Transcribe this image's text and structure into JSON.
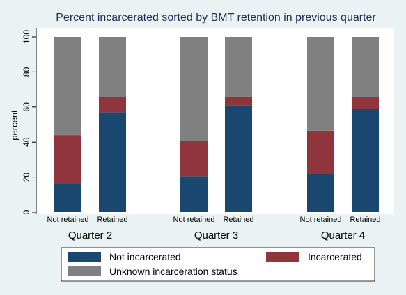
{
  "chart_data": {
    "type": "bar",
    "stacked": true,
    "title": "Percent incarcerated sorted by BMT retention in previous quarter",
    "ylabel": "percent",
    "ylim": [
      0,
      100
    ],
    "yticks": [
      0,
      20,
      40,
      60,
      80,
      100
    ],
    "grid": false,
    "legend_position": "bottom",
    "groups": [
      {
        "label": "Quarter 2",
        "bars": [
          {
            "label": "Not retained",
            "values": [
              16.5,
              27.5,
              56.0
            ]
          },
          {
            "label": "Retained",
            "values": [
              57.0,
              8.5,
              34.5
            ]
          }
        ]
      },
      {
        "label": "Quarter 3",
        "bars": [
          {
            "label": "Not retained",
            "values": [
              20.5,
              20.0,
              59.5
            ]
          },
          {
            "label": "Retained",
            "values": [
              61.0,
              5.0,
              34.0
            ]
          }
        ]
      },
      {
        "label": "Quarter 4",
        "bars": [
          {
            "label": "Not retained",
            "values": [
              22.0,
              24.5,
              53.5
            ]
          },
          {
            "label": "Retained",
            "values": [
              59.0,
              6.5,
              34.5
            ]
          }
        ]
      }
    ],
    "series": [
      {
        "name": "Not incarcerated",
        "color": "#1a476f"
      },
      {
        "name": "Incarcerated",
        "color": "#90353b"
      },
      {
        "name": "Unknown incarceration status",
        "color": "#808080"
      }
    ]
  }
}
